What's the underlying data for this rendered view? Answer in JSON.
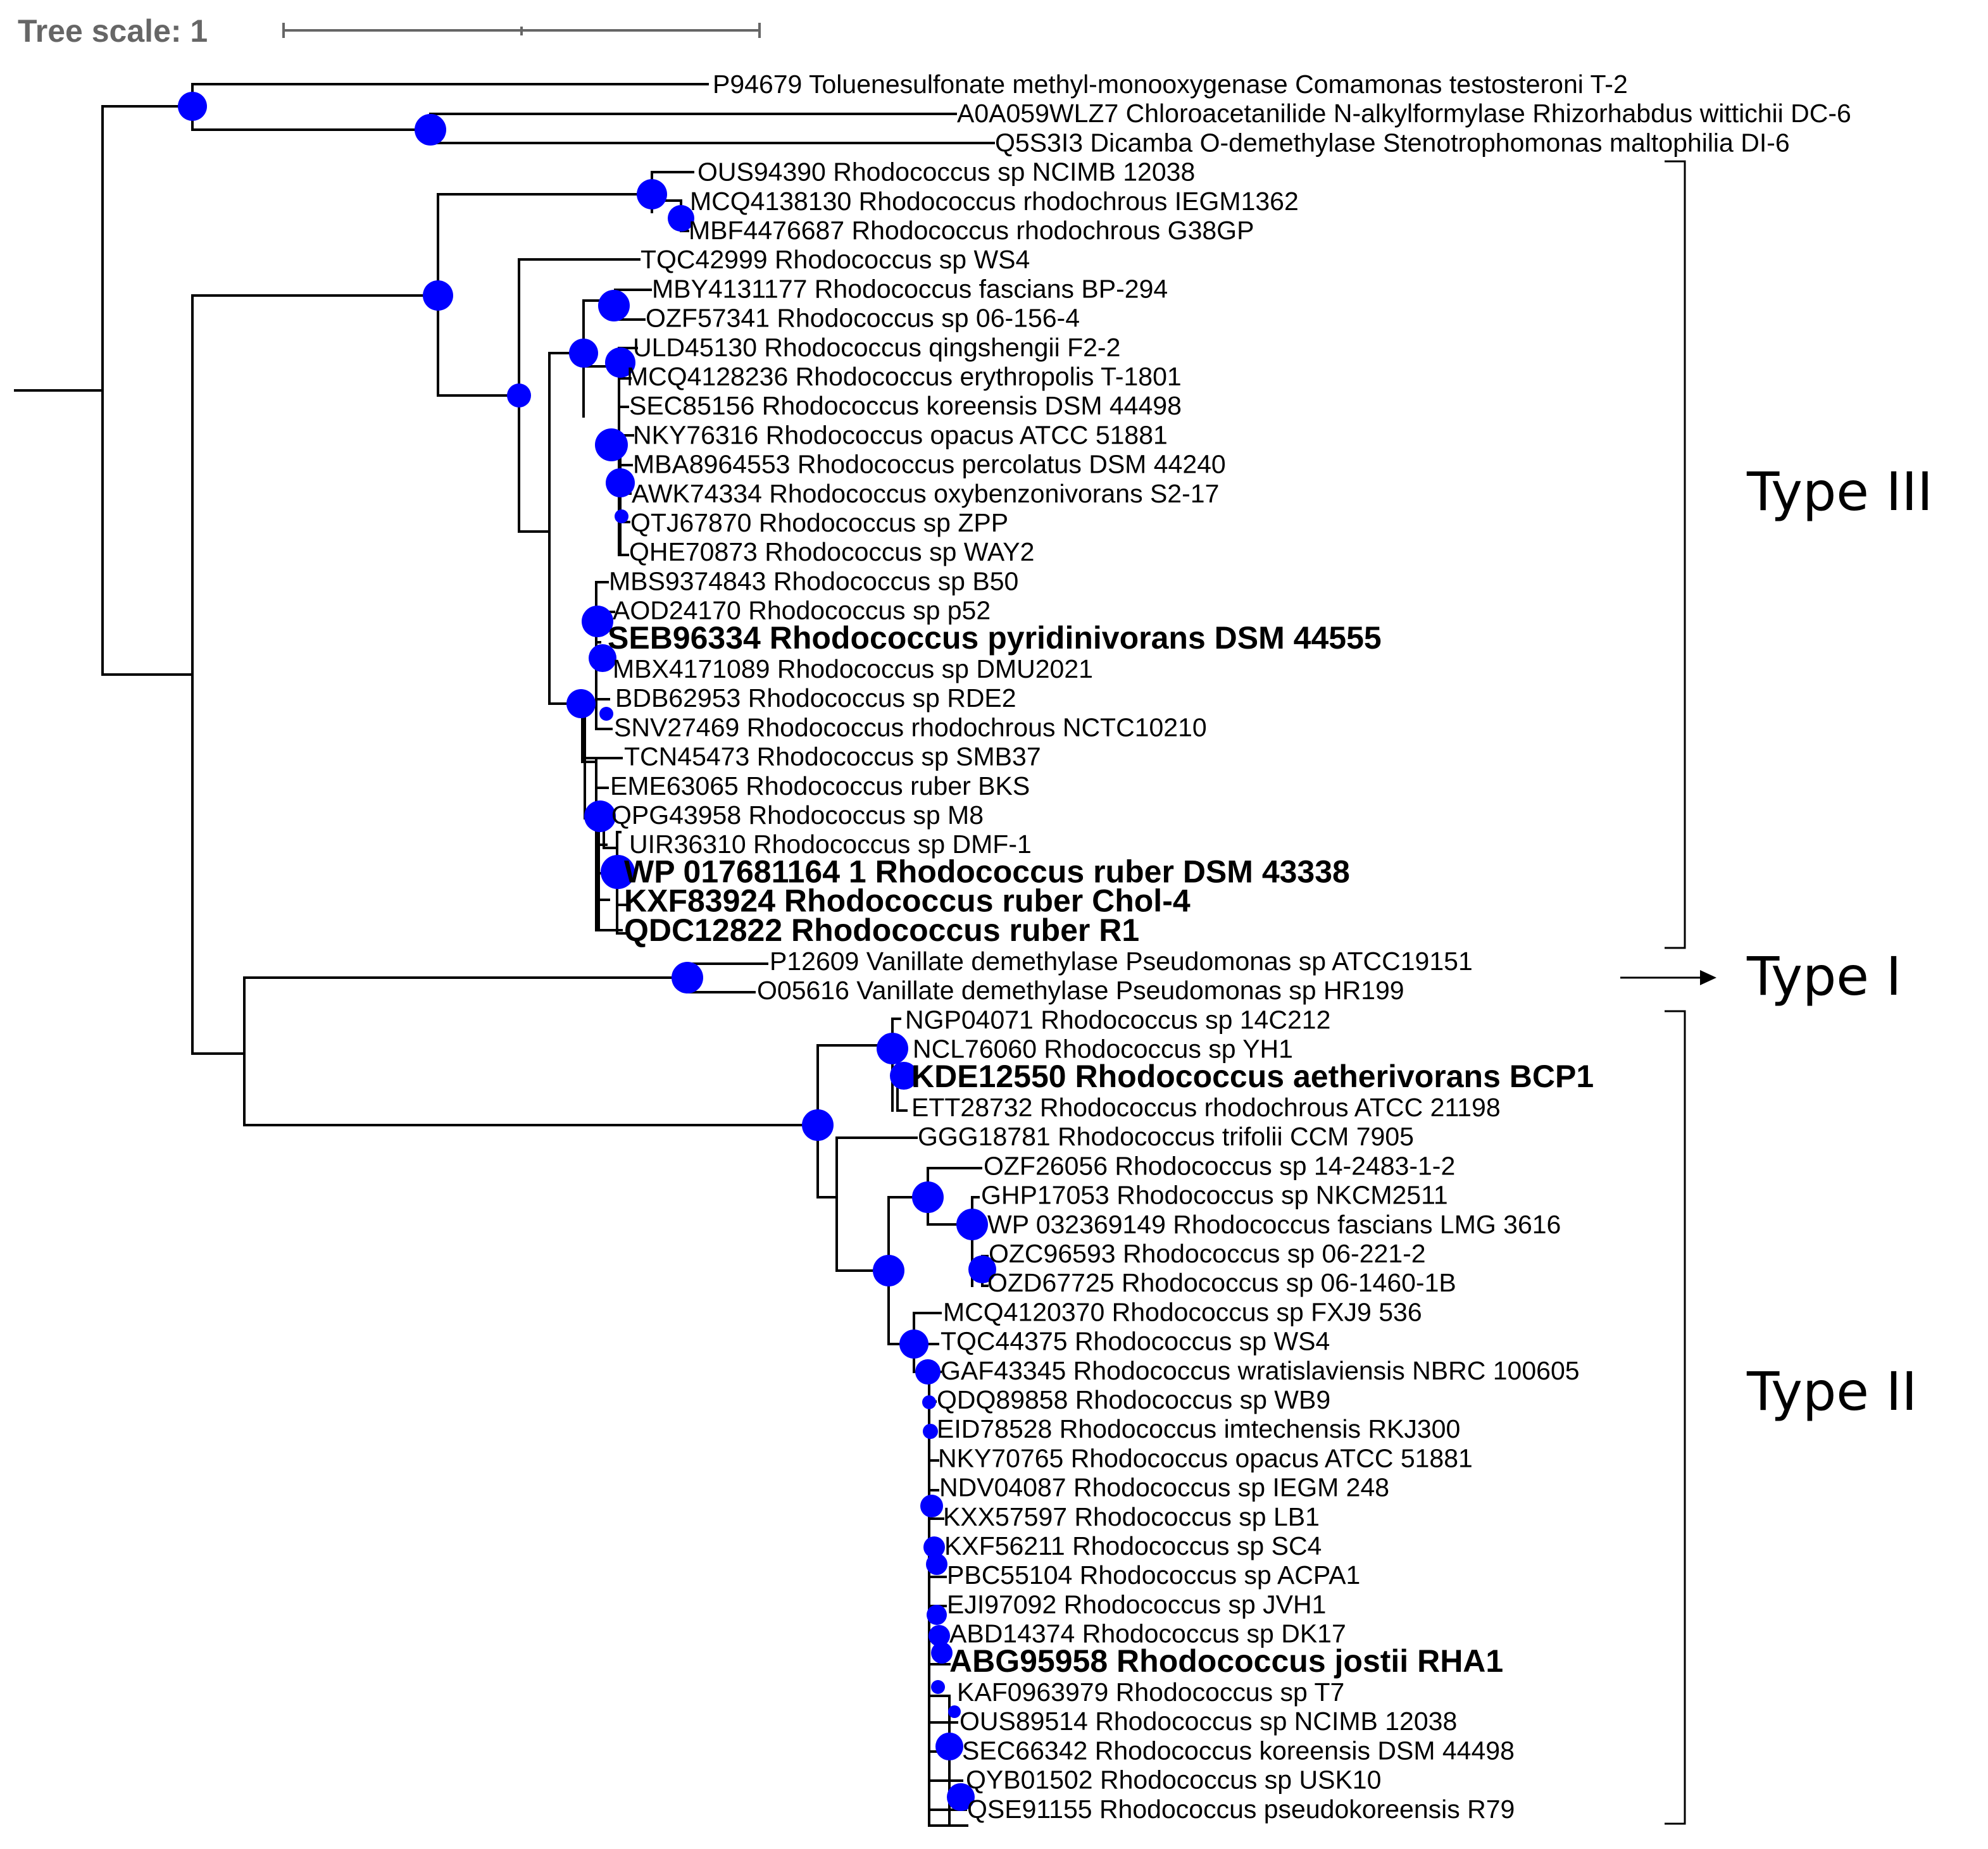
{
  "tree_scale": {
    "label": "Tree scale: 1"
  },
  "colors": {
    "node": "#0000ff",
    "branch": "#000000",
    "scale": "#666666"
  },
  "groups": [
    {
      "id": "type3",
      "label": "Type III"
    },
    {
      "id": "type1",
      "label": "Type I"
    },
    {
      "id": "type2",
      "label": "Type II"
    }
  ],
  "leaves": [
    {
      "label": "P94679 Toluenesulfonate methyl-monooxygenase Comamonas testosteroni T-2",
      "bold": false
    },
    {
      "label": "A0A059WLZ7 Chloroacetanilide N-alkylformylase Rhizorhabdus wittichii DC-6",
      "bold": false
    },
    {
      "label": "Q5S3I3 Dicamba O-demethylase Stenotrophomonas maltophilia DI-6",
      "bold": false
    },
    {
      "label": "OUS94390 Rhodococcus sp NCIMB 12038",
      "bold": false
    },
    {
      "label": "MCQ4138130 Rhodococcus rhodochrous IEGM1362",
      "bold": false
    },
    {
      "label": "MBF4476687 Rhodococcus rhodochrous G38GP",
      "bold": false
    },
    {
      "label": "TQC42999 Rhodococcus sp WS4",
      "bold": false
    },
    {
      "label": "MBY4131177 Rhodococcus fascians BP-294",
      "bold": false
    },
    {
      "label": "OZF57341 Rhodococcus sp 06-156-4",
      "bold": false
    },
    {
      "label": "ULD45130 Rhodococcus qingshengii F2-2",
      "bold": false
    },
    {
      "label": "MCQ4128236 Rhodococcus erythropolis T-1801",
      "bold": false
    },
    {
      "label": "SEC85156 Rhodococcus koreensis DSM 44498",
      "bold": false
    },
    {
      "label": "NKY76316 Rhodococcus opacus ATCC 51881",
      "bold": false
    },
    {
      "label": "MBA8964553 Rhodococcus percolatus DSM 44240",
      "bold": false
    },
    {
      "label": "AWK74334 Rhodococcus oxybenzonivorans S2-17",
      "bold": false
    },
    {
      "label": "QTJ67870 Rhodococcus sp ZPP",
      "bold": false
    },
    {
      "label": "QHE70873 Rhodococcus sp WAY2",
      "bold": false
    },
    {
      "label": "MBS9374843 Rhodococcus sp B50",
      "bold": false
    },
    {
      "label": "AOD24170 Rhodococcus sp p52",
      "bold": false
    },
    {
      "label": "SEB96334 Rhodococcus pyridinivorans DSM 44555",
      "bold": true
    },
    {
      "label": "MBX4171089 Rhodococcus sp DMU2021",
      "bold": false
    },
    {
      "label": "BDB62953 Rhodococcus sp RDE2",
      "bold": false
    },
    {
      "label": "SNV27469 Rhodococcus rhodochrous NCTC10210",
      "bold": false
    },
    {
      "label": "TCN45473 Rhodococcus sp SMB37",
      "bold": false
    },
    {
      "label": "EME63065 Rhodococcus ruber BKS",
      "bold": false
    },
    {
      "label": "QPG43958 Rhodococcus sp M8",
      "bold": false
    },
    {
      "label": "UIR36310 Rhodococcus sp DMF-1",
      "bold": false
    },
    {
      "label": "WP 017681164 1 Rhodococcus ruber DSM 43338",
      "bold": true
    },
    {
      "label": "KXF83924 Rhodococcus ruber Chol-4",
      "bold": true
    },
    {
      "label": "QDC12822 Rhodococcus ruber R1",
      "bold": true
    },
    {
      "label": "P12609 Vanillate demethylase Pseudomonas sp ATCC19151",
      "bold": false
    },
    {
      "label": "O05616 Vanillate demethylase Pseudomonas sp HR199",
      "bold": false
    },
    {
      "label": "NGP04071 Rhodococcus sp 14C212",
      "bold": false
    },
    {
      "label": "NCL76060 Rhodococcus sp YH1",
      "bold": false
    },
    {
      "label": "KDE12550 Rhodococcus aetherivorans BCP1",
      "bold": true
    },
    {
      "label": "ETT28732 Rhodococcus rhodochrous ATCC 21198",
      "bold": false
    },
    {
      "label": "GGG18781 Rhodococcus trifolii CCM 7905",
      "bold": false
    },
    {
      "label": "OZF26056 Rhodococcus sp 14-2483-1-2",
      "bold": false
    },
    {
      "label": "GHP17053 Rhodococcus sp NKCM2511",
      "bold": false
    },
    {
      "label": "WP 032369149 Rhodococcus fascians LMG 3616",
      "bold": false
    },
    {
      "label": "OZC96593 Rhodococcus sp 06-221-2",
      "bold": false
    },
    {
      "label": "OZD67725 Rhodococcus sp 06-1460-1B",
      "bold": false
    },
    {
      "label": "MCQ4120370 Rhodococcus sp FXJ9 536",
      "bold": false
    },
    {
      "label": "TQC44375 Rhodococcus sp WS4",
      "bold": false
    },
    {
      "label": "GAF43345 Rhodococcus wratislaviensis NBRC 100605",
      "bold": false
    },
    {
      "label": "QDQ89858 Rhodococcus sp WB9",
      "bold": false
    },
    {
      "label": "EID78528 Rhodococcus imtechensis RKJ300",
      "bold": false
    },
    {
      "label": "NKY70765 Rhodococcus opacus ATCC 51881",
      "bold": false
    },
    {
      "label": "NDV04087 Rhodococcus sp IEGM 248",
      "bold": false
    },
    {
      "label": "KXX57597 Rhodococcus sp LB1",
      "bold": false
    },
    {
      "label": "KXF56211 Rhodococcus sp SC4",
      "bold": false
    },
    {
      "label": "PBC55104 Rhodococcus sp ACPA1",
      "bold": false
    },
    {
      "label": "EJI97092 Rhodococcus sp JVH1",
      "bold": false
    },
    {
      "label": "ABD14374 Rhodococcus sp DK17",
      "bold": false
    },
    {
      "label": "ABG95958 Rhodococcus jostii RHA1",
      "bold": true
    },
    {
      "label": "KAF0963979 Rhodococcus sp T7",
      "bold": false
    },
    {
      "label": "OUS89514 Rhodococcus sp NCIMB 12038",
      "bold": false
    },
    {
      "label": "SEC66342 Rhodococcus koreensis DSM 44498",
      "bold": false
    },
    {
      "label": "QYB01502 Rhodococcus sp USK10",
      "bold": false
    },
    {
      "label": "QSE91155 Rhodococcus pseudokoreensis R79",
      "bold": false
    }
  ]
}
